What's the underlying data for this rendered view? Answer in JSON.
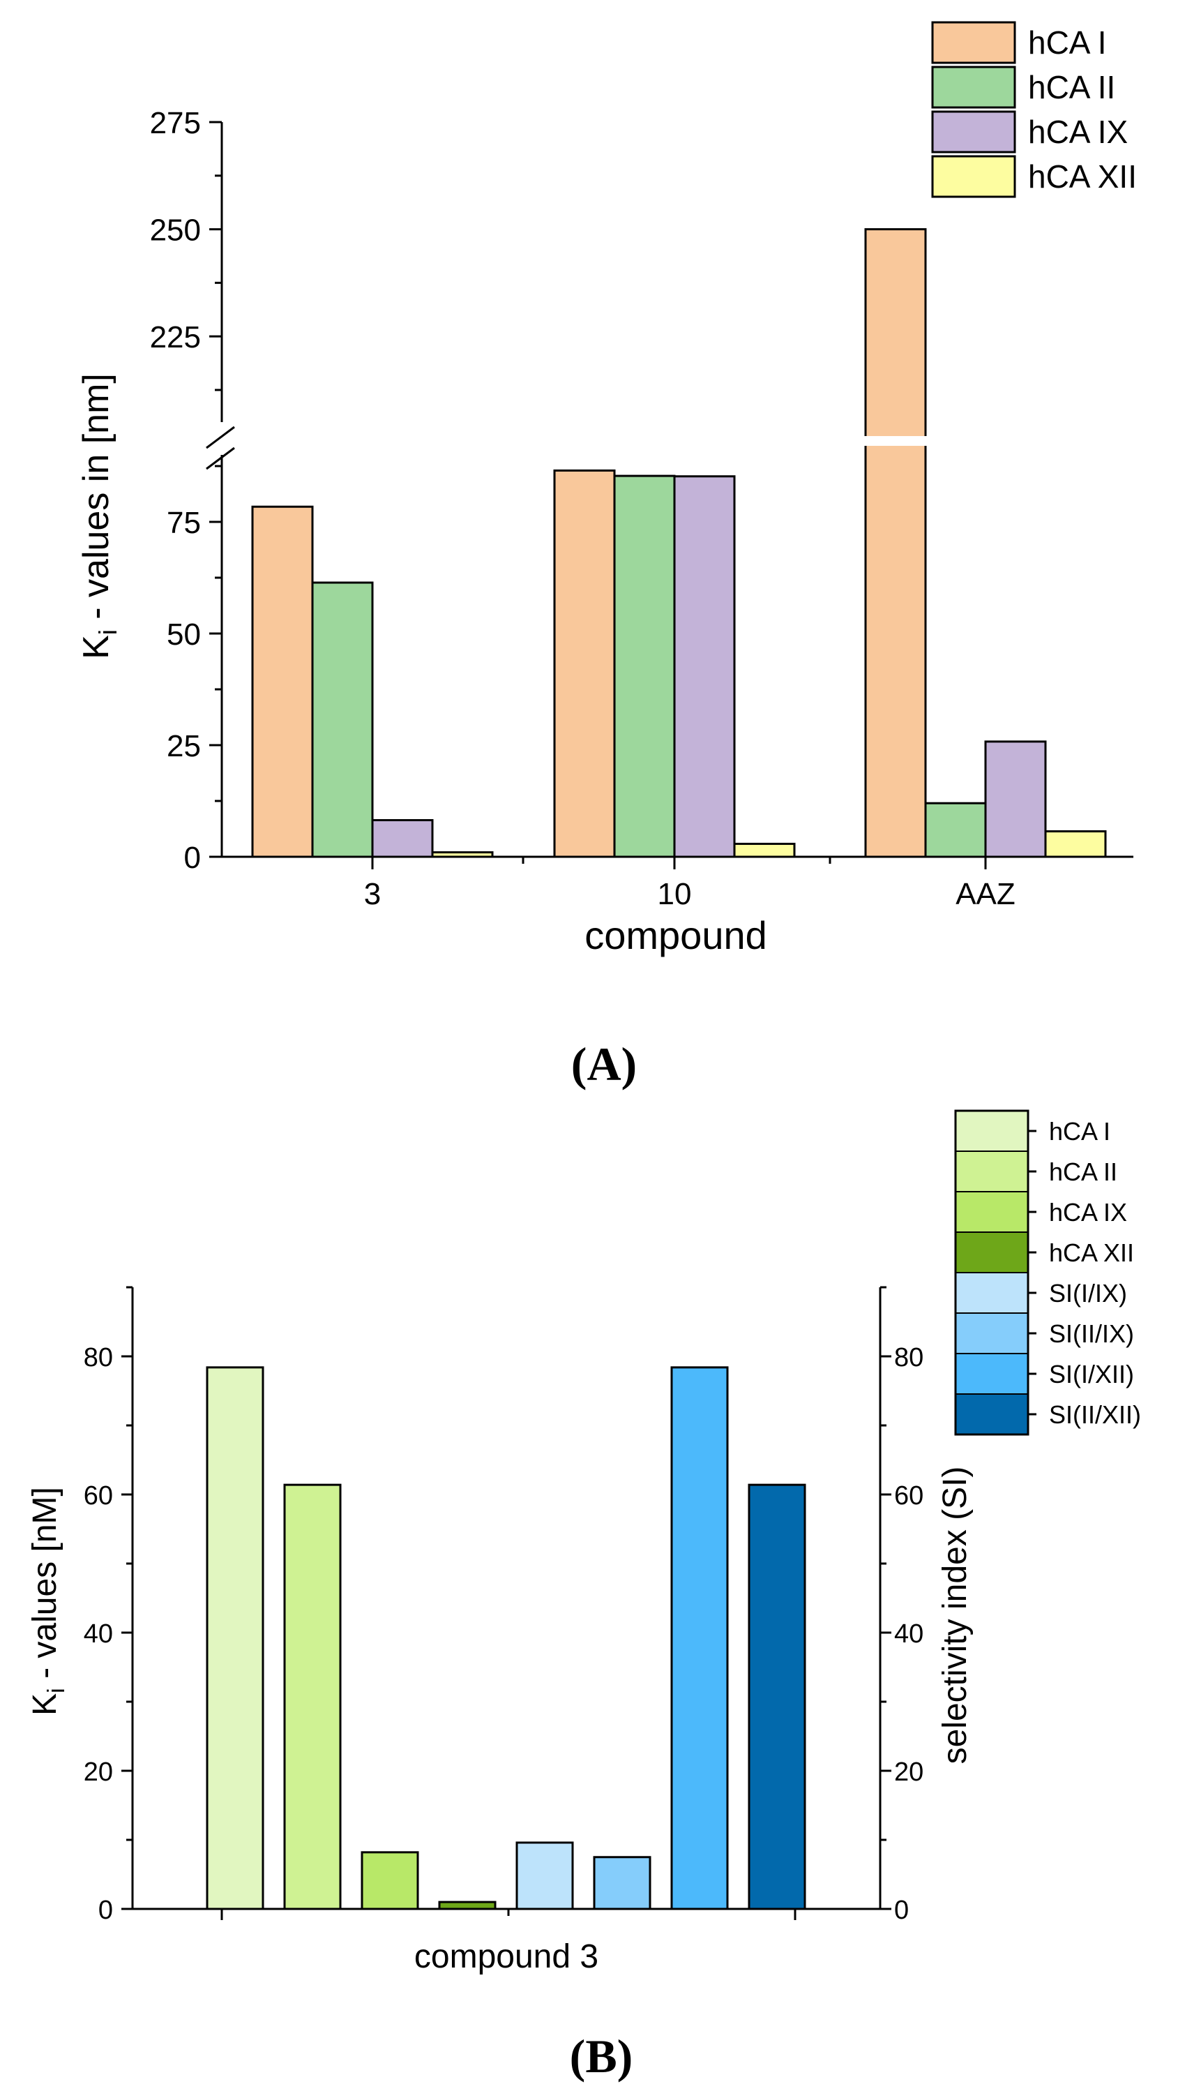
{
  "chart_data": [
    {
      "type": "bar",
      "panel_label_open": "(",
      "panel_label": "A",
      "panel_label_close": ")",
      "xlabel": "compound",
      "ylabel_main": "K",
      "ylabel_sub": "i",
      "ylabel_rest": " - values in [nm]",
      "categories": [
        "3",
        "10",
        "AAZ"
      ],
      "series": [
        {
          "name": "hCA I",
          "color": "#f9c89b",
          "values": [
            78.4,
            86.5,
            250
          ]
        },
        {
          "name": "hCA II",
          "color": "#9dd79c",
          "values": [
            61.4,
            85.3,
            12
          ]
        },
        {
          "name": "hCA IX",
          "color": "#c3b3d8",
          "values": [
            8.2,
            85.2,
            25.8
          ]
        },
        {
          "name": "hCA XII",
          "color": "#fdfda0",
          "values": [
            1.0,
            2.9,
            5.7
          ]
        }
      ],
      "ylim_lower": [
        0,
        90
      ],
      "ylim_upper": [
        205,
        275
      ],
      "yticks_lower": [
        "0",
        "25",
        "50",
        "75"
      ],
      "yticks_upper": [
        "225",
        "250",
        "275"
      ],
      "axis_break": true,
      "legend_position": "top-right"
    },
    {
      "type": "bar",
      "panel_label_open": "(",
      "panel_label": "B",
      "panel_label_close": ")",
      "xlabel": "compound 3",
      "ylabel_main": "K",
      "ylabel_sub": "i",
      "ylabel_rest": " - values [nM]",
      "y2label": "selectivity index (SI)",
      "ylim": [
        0,
        90
      ],
      "yticks": [
        "0",
        "20",
        "40",
        "60",
        "80"
      ],
      "y2ticks": [
        "0",
        "20",
        "40",
        "60",
        "80"
      ],
      "bars": [
        {
          "name": "hCA I",
          "color": "#e1f6c0",
          "value": 78.4
        },
        {
          "name": "hCA II",
          "color": "#cff293",
          "value": 61.4
        },
        {
          "name": "hCA IX",
          "color": "#b8e868",
          "value": 8.2
        },
        {
          "name": "hCA XII",
          "color": "#6ea719",
          "value": 1.0
        },
        {
          "name": "SI(I/IX)",
          "color": "#bde3fb",
          "value": 9.6
        },
        {
          "name": "SI(II/IX)",
          "color": "#85cdfb",
          "value": 7.5
        },
        {
          "name": "SI(I/XII)",
          "color": "#4cb9fb",
          "value": 78.4
        },
        {
          "name": "SI(II/XII)",
          "color": "#0269ac",
          "value": 61.4
        }
      ],
      "legend_position": "top-right"
    }
  ]
}
